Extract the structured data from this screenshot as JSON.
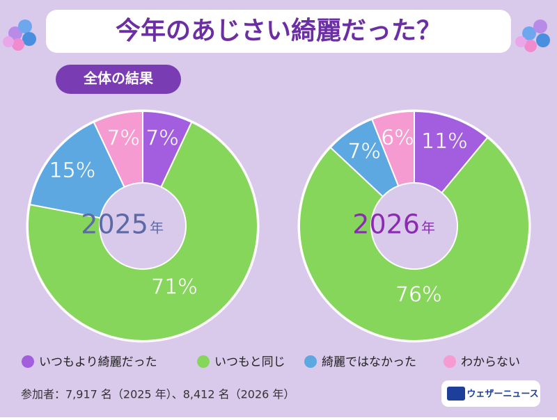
{
  "title": "今年のあじさい綺麗だった？",
  "badge": "全体の結果",
  "chart_data": [
    {
      "type": "pie",
      "center_label": "2025",
      "center_unit": "年",
      "center_color": "#5b6aa6",
      "categories": [
        "いつもより綺麗だった",
        "いつもと同じ",
        "綺麗ではなかった",
        "わからない"
      ],
      "values": [
        7,
        71,
        15,
        7
      ],
      "value_labels": [
        "7%",
        "71%",
        "15%",
        "7%"
      ],
      "colors": [
        "#a35ddf",
        "#86d65c",
        "#5ea8e2",
        "#f59bd1"
      ]
    },
    {
      "type": "pie",
      "center_label": "2026",
      "center_unit": "年",
      "center_color": "#8b2bb3",
      "categories": [
        "いつもより綺麗だった",
        "いつもと同じ",
        "綺麗ではなかった",
        "わからない"
      ],
      "values": [
        11,
        76,
        7,
        6
      ],
      "value_labels": [
        "11%",
        "76%",
        "7%",
        "6%"
      ],
      "colors": [
        "#a35ddf",
        "#86d65c",
        "#5ea8e2",
        "#f59bd1"
      ]
    }
  ],
  "footnote": "参加者：7,917 名（2025 年）、8,412 名（2026 年）",
  "logo": "ウェザーニュース"
}
